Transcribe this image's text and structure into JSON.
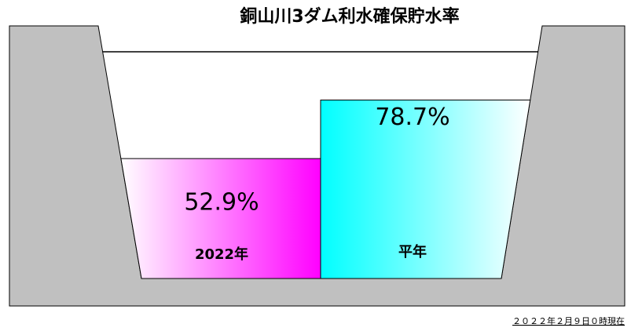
{
  "chart_data": {
    "type": "reservoir",
    "title": "銅山川3ダム利水確保貯水率",
    "categories": [
      "2022年",
      "平年"
    ],
    "values": [
      52.9,
      78.7
    ],
    "value_labels": [
      "52.9%",
      "78.7%"
    ],
    "colors": [
      "#ff00ff",
      "#00ffff"
    ],
    "ylim": [
      0,
      100
    ],
    "annotation": "２０２２年２月９日０時現在"
  }
}
